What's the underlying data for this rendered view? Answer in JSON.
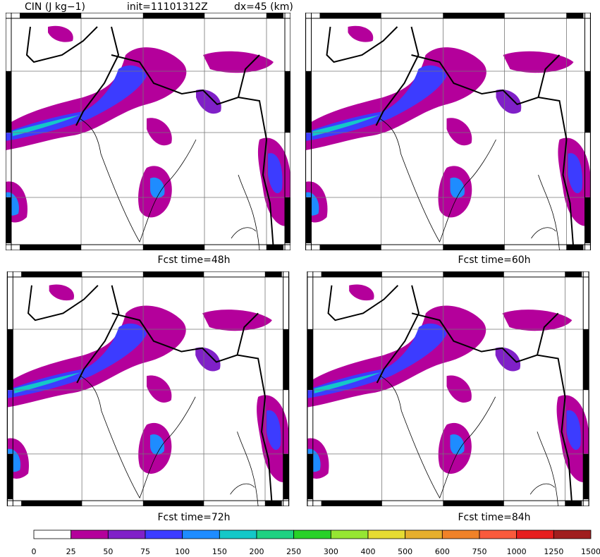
{
  "header": {
    "title": "CIN (J kg−1)",
    "init": "init=11101312Z",
    "dx": "dx=45 (km)"
  },
  "panels": [
    {
      "label": "Fcst time=48h"
    },
    {
      "label": "Fcst time=60h"
    },
    {
      "label": "Fcst time=72h"
    },
    {
      "label": "Fcst time=84h"
    }
  ],
  "colorbar": {
    "ticks": [
      0,
      25,
      50,
      75,
      100,
      150,
      200,
      250,
      300,
      400,
      500,
      600,
      750,
      1000,
      1250,
      1500
    ],
    "colors": [
      "#ffffff",
      "#b4009b",
      "#8020c8",
      "#3c3cff",
      "#1e8cff",
      "#14c8c8",
      "#1ed282",
      "#28d228",
      "#96e632",
      "#e6dc32",
      "#e6af2d",
      "#f08228",
      "#fa5a3c",
      "#e61e1e",
      "#a01e1e"
    ]
  }
}
